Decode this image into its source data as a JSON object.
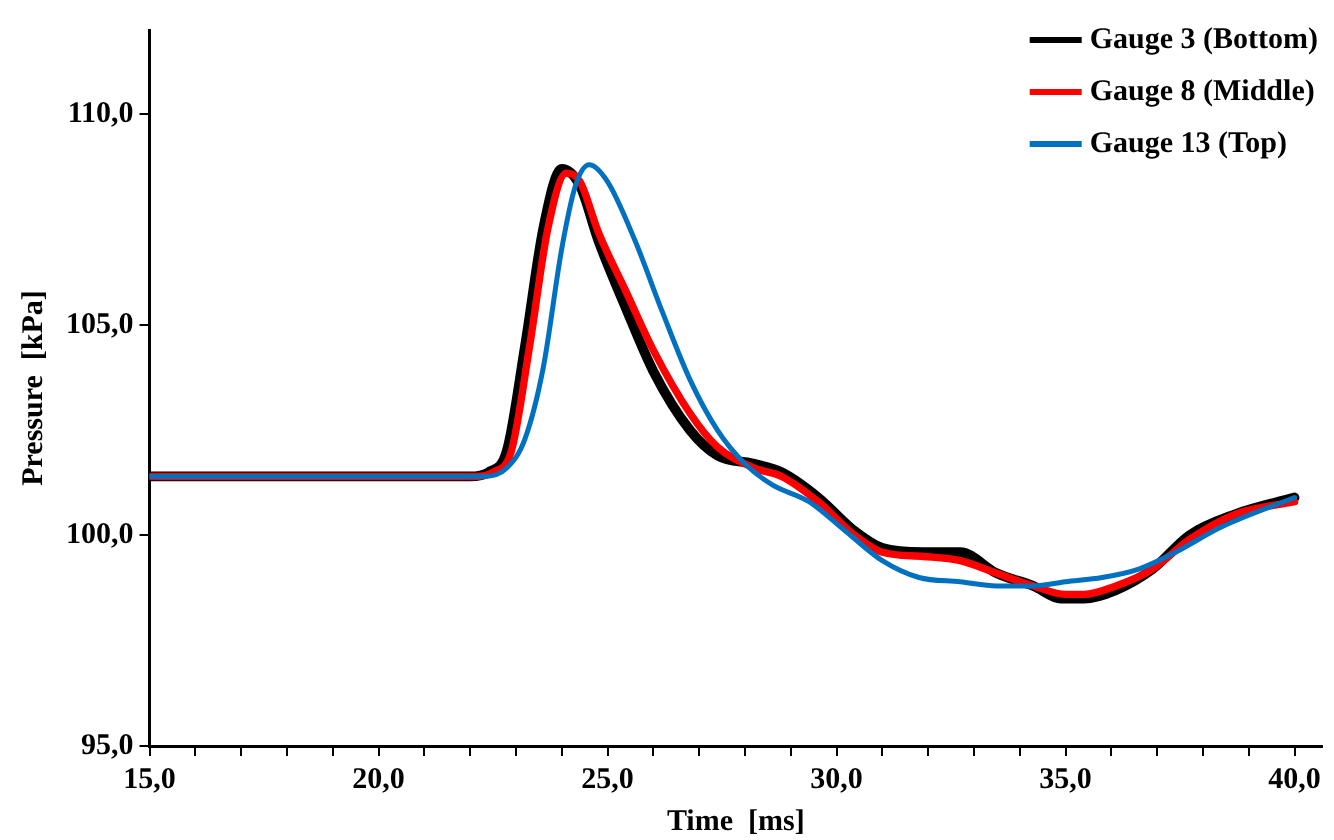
{
  "chart_data": {
    "type": "line",
    "xlabel": "Time  [ms]",
    "ylabel": "Pressure  [kPa]",
    "xlim": [
      15,
      40.6
    ],
    "ylim": [
      95,
      112
    ],
    "xticks": [
      {
        "value": 15,
        "label": "15,0"
      },
      {
        "value": 16,
        "label": null
      },
      {
        "value": 17,
        "label": null
      },
      {
        "value": 18,
        "label": null
      },
      {
        "value": 19,
        "label": null
      },
      {
        "value": 20,
        "label": "20,0"
      },
      {
        "value": 21,
        "label": null
      },
      {
        "value": 22,
        "label": null
      },
      {
        "value": 23,
        "label": null
      },
      {
        "value": 24,
        "label": null
      },
      {
        "value": 25,
        "label": "25,0"
      },
      {
        "value": 26,
        "label": null
      },
      {
        "value": 27,
        "label": null
      },
      {
        "value": 28,
        "label": null
      },
      {
        "value": 29,
        "label": null
      },
      {
        "value": 30,
        "label": "30,0"
      },
      {
        "value": 31,
        "label": null
      },
      {
        "value": 32,
        "label": null
      },
      {
        "value": 33,
        "label": null
      },
      {
        "value": 34,
        "label": null
      },
      {
        "value": 35,
        "label": "35,0"
      },
      {
        "value": 36,
        "label": null
      },
      {
        "value": 37,
        "label": null
      },
      {
        "value": 38,
        "label": null
      },
      {
        "value": 39,
        "label": null
      },
      {
        "value": 40,
        "label": "40,0"
      }
    ],
    "yticks": [
      {
        "value": 95,
        "label": "95,0"
      },
      {
        "value": 100,
        "label": "100,0"
      },
      {
        "value": 105,
        "label": "105,0"
      },
      {
        "value": 110,
        "label": "110,0"
      }
    ],
    "grid": false,
    "legend": "top right",
    "marker": "none",
    "line_style": "solid",
    "series": [
      {
        "name": "Gauge 3 (Bottom)",
        "color": "#000000",
        "x": [
          15,
          22,
          22.4,
          22.8,
          23.2,
          23.6,
          24.0,
          24.4,
          24.8,
          25.4,
          26.0,
          26.8,
          27.4,
          28.2,
          28.8,
          29.6,
          30.4,
          31.0,
          31.9,
          32.7,
          33.5,
          34.3,
          34.9,
          35.4,
          36.1,
          36.9,
          37.7,
          38.7,
          40
        ],
        "values": [
          101.4,
          101.4,
          101.5,
          102.0,
          104.5,
          107.3,
          108.7,
          108.3,
          107.0,
          105.4,
          103.9,
          102.5,
          101.9,
          101.7,
          101.5,
          100.9,
          100.1,
          99.7,
          99.6,
          99.6,
          99.1,
          98.8,
          98.5,
          98.5,
          98.7,
          99.2,
          100.0,
          100.5,
          100.9
        ]
      },
      {
        "name": "Gauge 8 (Middle)",
        "color": "#ff0000",
        "x": [
          15,
          22.1,
          22.5,
          22.9,
          23.3,
          23.7,
          24.1,
          24.4,
          24.8,
          25.4,
          26.0,
          26.8,
          27.4,
          28.2,
          28.8,
          29.6,
          30.4,
          31.0,
          31.9,
          32.7,
          33.5,
          34.3,
          35.0,
          35.4,
          36.1,
          36.9,
          37.7,
          38.7,
          40
        ],
        "values": [
          101.4,
          101.4,
          101.5,
          102.0,
          104.5,
          107.3,
          108.6,
          108.4,
          107.2,
          105.8,
          104.4,
          102.9,
          102.1,
          101.6,
          101.4,
          100.8,
          100.0,
          99.6,
          99.5,
          99.4,
          99.1,
          98.8,
          98.6,
          98.6,
          98.8,
          99.2,
          99.9,
          100.5,
          100.8
        ]
      },
      {
        "name": "Gauge 13 (Top)",
        "color": "#0070c0",
        "x": [
          15,
          22.3,
          22.8,
          23.2,
          23.6,
          24.0,
          24.3,
          24.6,
          25.0,
          25.6,
          26.2,
          26.8,
          27.4,
          28.0,
          28.6,
          29.4,
          30.2,
          31.0,
          31.8,
          32.7,
          33.5,
          34.3,
          35.0,
          35.8,
          36.6,
          37.4,
          38.4,
          40
        ],
        "values": [
          101.4,
          101.4,
          101.6,
          102.3,
          104.0,
          106.8,
          108.3,
          108.8,
          108.4,
          107.0,
          105.3,
          103.7,
          102.5,
          101.7,
          101.2,
          100.8,
          100.1,
          99.4,
          99.0,
          98.9,
          98.8,
          98.8,
          98.9,
          99.0,
          99.2,
          99.6,
          100.2,
          100.9
        ]
      }
    ]
  }
}
